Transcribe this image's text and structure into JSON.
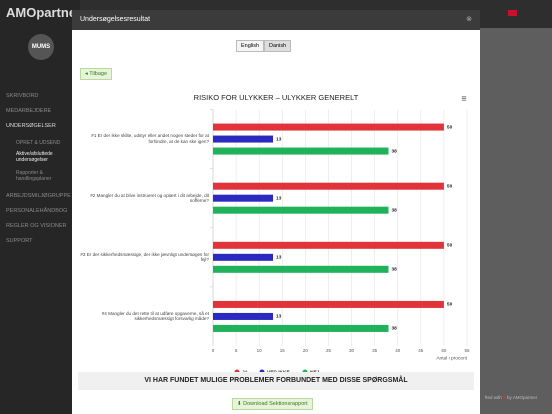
{
  "app": {
    "logo": "AMOpartner",
    "avatar": "MUMS",
    "menu": [
      "SKRIVBORD",
      "MEDARBEJDERE",
      "UNDERSØGELSER"
    ],
    "submenu": [
      "OPRET & UDSEND",
      "Aktive/afsluttede undersøgelser",
      "Rapporter & handlingsplaner"
    ],
    "menu2": [
      "ARBEJDSMILJØGRUPPE",
      "PERSONALEHÅNDBOG",
      "REGLER OG VISIONER",
      "SUPPORT"
    ],
    "footer_a": "fted with",
    "footer_b": "by AMOpartner"
  },
  "modal": {
    "title": "Undersøgelsesresultat",
    "languages": [
      "English",
      "Danish"
    ],
    "back": "Tilbage",
    "banner": "VI HAR FUNDET MULIGE PROBLEMER FORBUNDET MED DISSE SPØRGSMÅL",
    "download": "Download Sektionsrapport"
  },
  "chart_data": {
    "type": "barh",
    "title": "RISIKO FOR ULYKKER – ULYKKER GENERELT",
    "categories": [
      "#1 Er der ikke skilte, udstyr eller andet nogen steder for at forhindre, at de kan ske igen?",
      "#2 Mangler du at blive instrueret og oplært i dit arbejde, dit sofferne?",
      "#3 Er der sikkerhedsmæssige, der ikke jævnligt undersøges for fejl?",
      "#4 Mangler du det rette til at udføre opgaverne, så et sikkerhedsmæssigt forsvarlig måde?"
    ],
    "series": [
      {
        "name": "JA",
        "color": "#e0333a",
        "values": [
          50,
          50,
          50,
          50
        ]
      },
      {
        "name": "VED IKKE",
        "color": "#2a2ac0",
        "values": [
          13,
          13,
          13,
          13
        ]
      },
      {
        "name": "NEJ",
        "color": "#1fb25a",
        "values": [
          38,
          38,
          38,
          38
        ]
      }
    ],
    "xlim": [
      0,
      55
    ],
    "xticks": [
      0,
      5,
      10,
      15,
      20,
      25,
      30,
      35,
      40,
      45,
      50,
      55
    ],
    "xlabel": "Antal i procent",
    "grid": true
  }
}
